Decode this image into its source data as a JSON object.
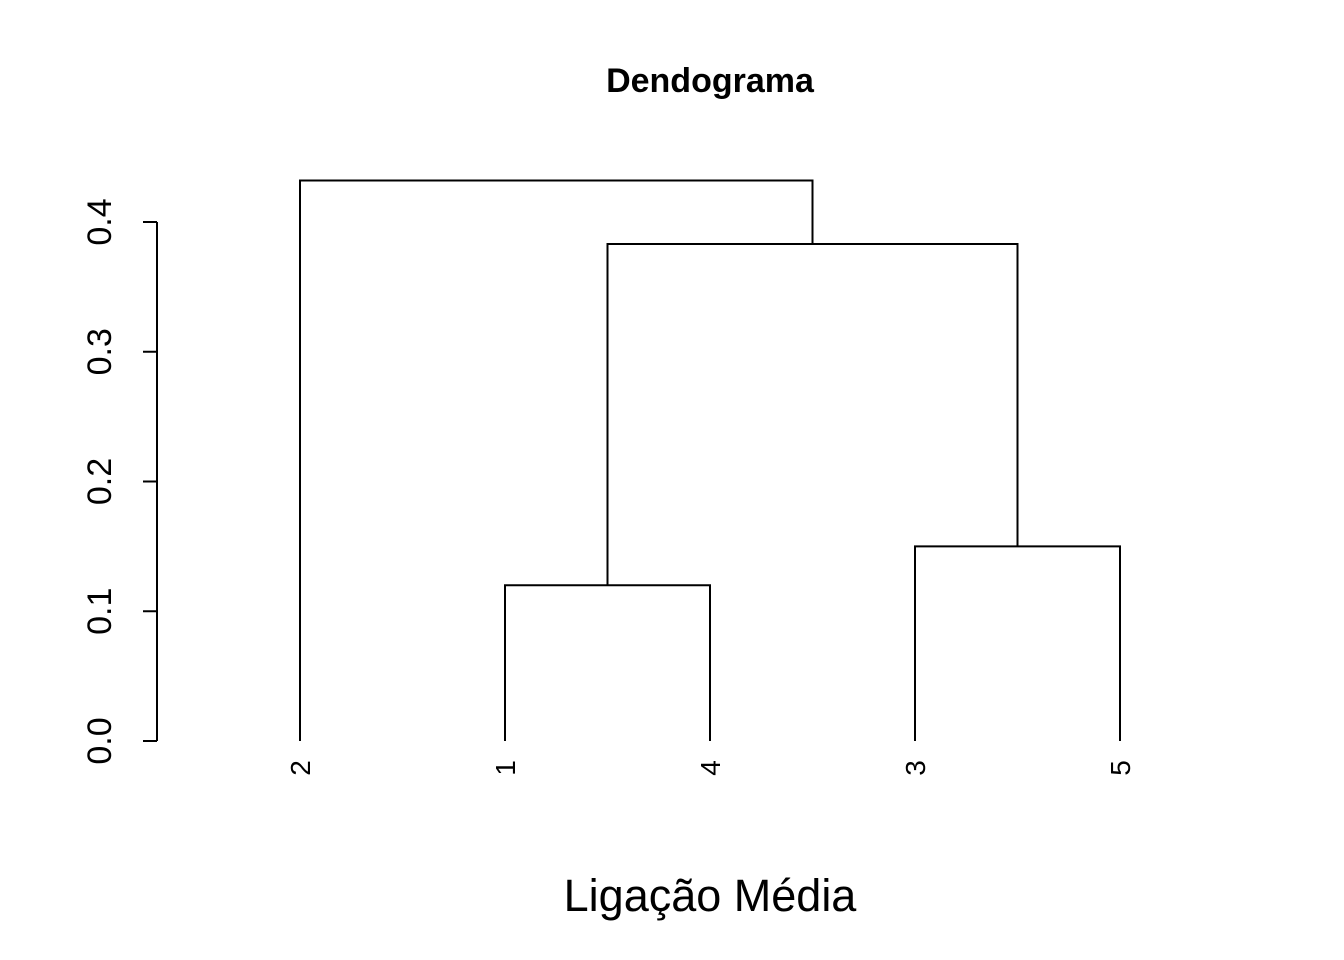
{
  "chart_data": {
    "type": "dendrogram",
    "title": "Dendograma",
    "xlabel": "Ligação Média",
    "ylabel": "",
    "ylim": [
      0,
      0.4
    ],
    "y_ticks": [
      "0.0",
      "0.1",
      "0.2",
      "0.3",
      "0.4"
    ],
    "y_tick_values": [
      0,
      0.1,
      0.2,
      0.3,
      0.4
    ],
    "leaf_order": [
      "2",
      "1",
      "4",
      "3",
      "5"
    ],
    "merges": [
      {
        "left": "1",
        "right": "4",
        "height": 0.12
      },
      {
        "left": "3",
        "right": "5",
        "height": 0.15
      },
      {
        "left": "1+4",
        "right": "3+5",
        "height": 0.383
      },
      {
        "left": "2",
        "right": "1+4+3+5",
        "height": 0.432
      }
    ],
    "grid": false,
    "legend": "none",
    "colors": {
      "line": "#000000",
      "background": "#ffffff"
    }
  }
}
